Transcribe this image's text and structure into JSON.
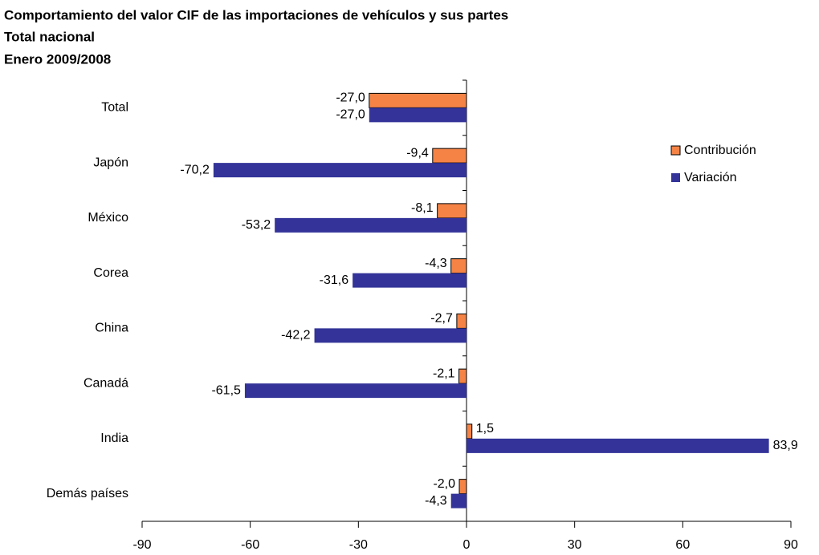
{
  "chart_data": {
    "type": "hbar",
    "title": "Comportamiento del valor CIF de las importaciones de vehículos y sus partes",
    "subtitle": [
      "Total nacional",
      "Enero 2009/2008"
    ],
    "categories": [
      "Total",
      "Japón",
      "México",
      "Corea",
      "China",
      "Canadá",
      "India",
      "Demás países"
    ],
    "series": [
      {
        "name": "Contribución",
        "color": "#f58345",
        "values": [
          -27.0,
          -9.4,
          -8.1,
          -4.3,
          -2.7,
          -2.1,
          1.5,
          -2.0
        ],
        "value_labels": [
          "-27,0",
          "-9,4",
          "-8,1",
          "-4,3",
          "-2,7",
          "-2,1",
          "1,5",
          "-2,0"
        ]
      },
      {
        "name": "Variación",
        "color": "#333399",
        "values": [
          -27.0,
          -70.2,
          -53.2,
          -31.6,
          -42.2,
          -61.5,
          83.9,
          -4.3
        ],
        "value_labels": [
          "-27,0",
          "-70,2",
          "-53,2",
          "-31,6",
          "-42,2",
          "-61,5",
          "83,9",
          "-4,3"
        ]
      }
    ],
    "xlim": [
      -90,
      90
    ],
    "xticks": [
      -90,
      -60,
      -30,
      0,
      30,
      60,
      90
    ],
    "legend": "right"
  }
}
